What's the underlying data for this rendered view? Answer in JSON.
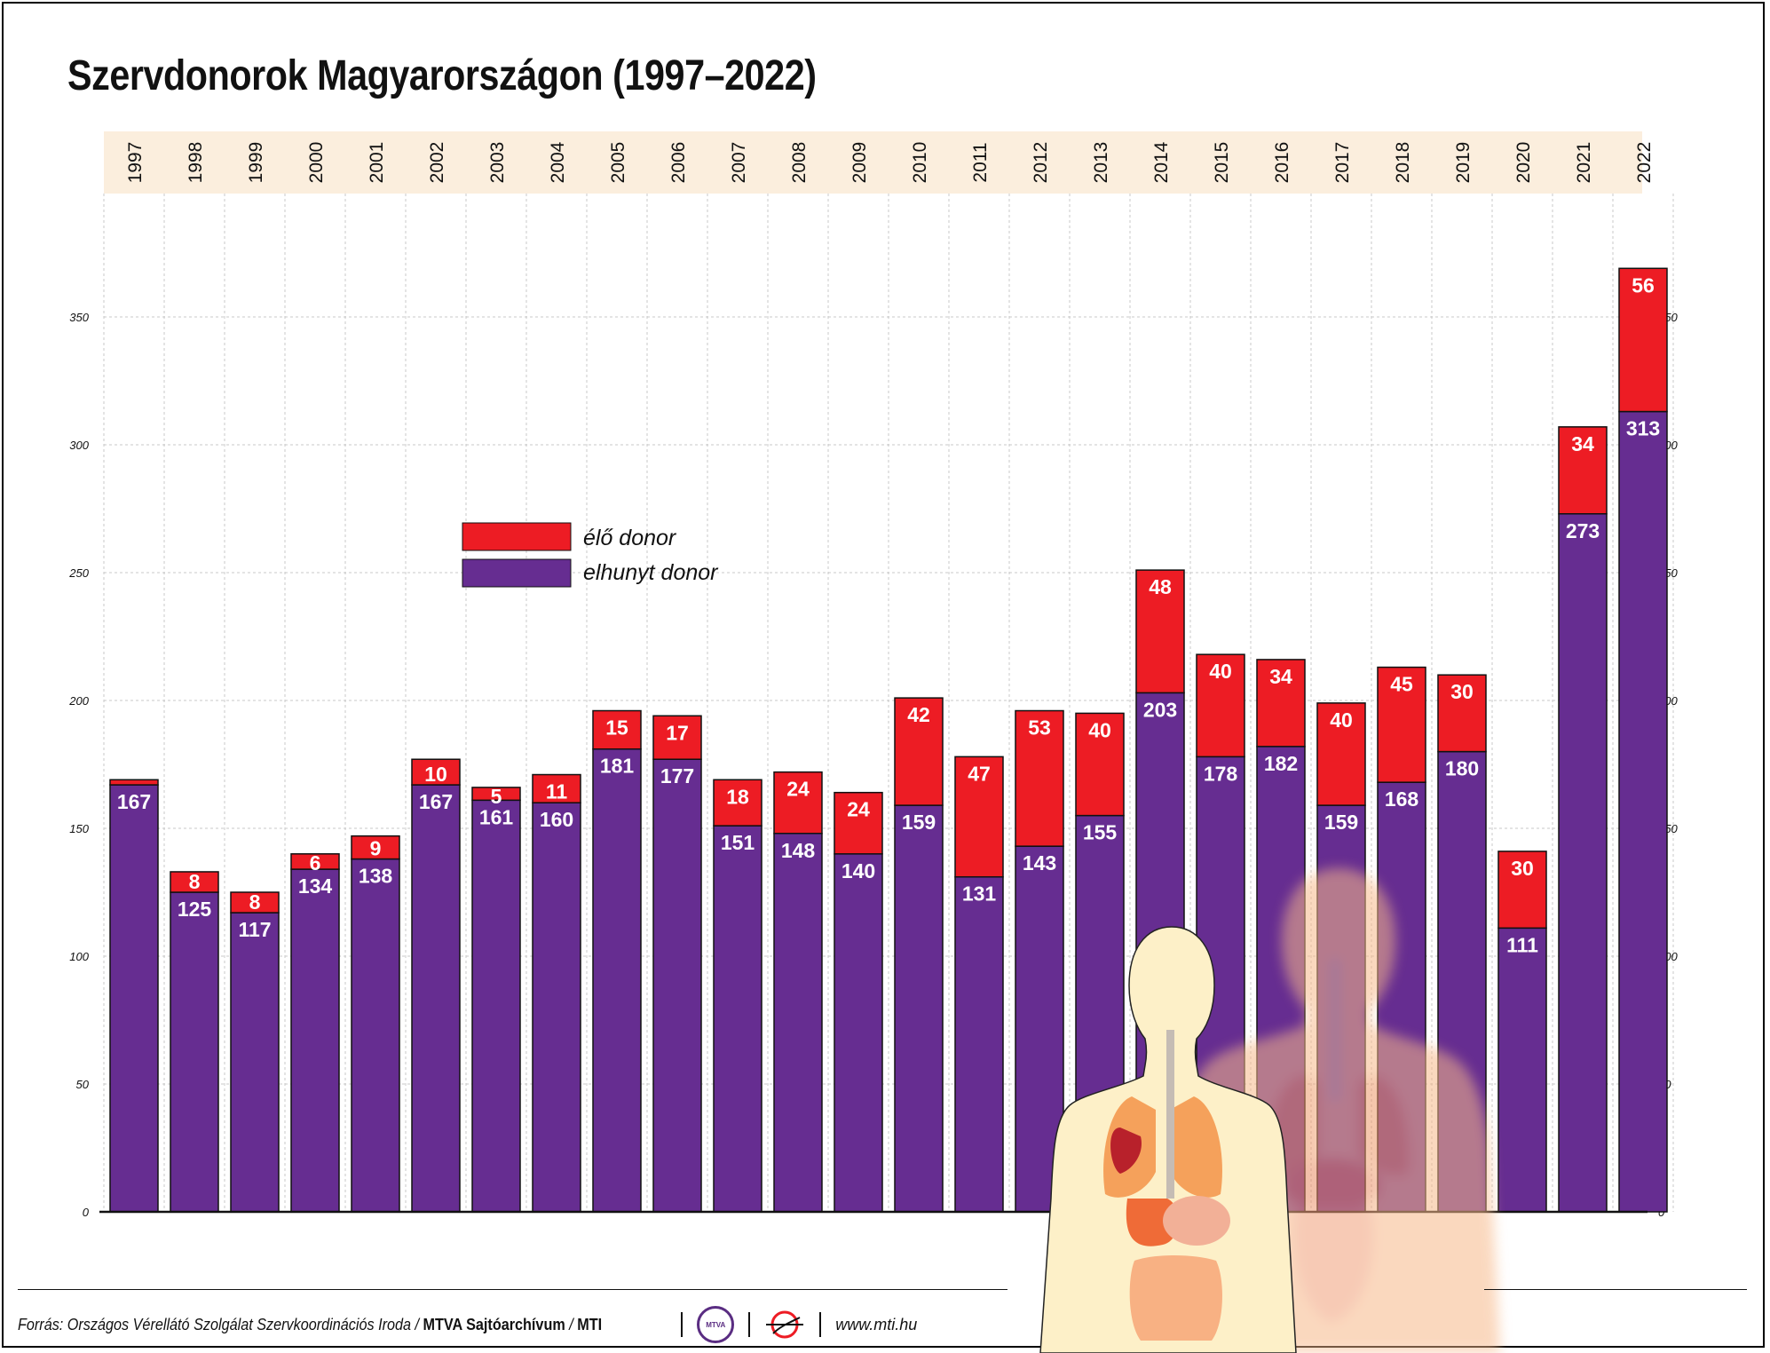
{
  "title": "Szervdonorok Magyarországon (1997–2022)",
  "colors": {
    "living": "#ed1c24",
    "deceased": "#662d91",
    "year_band": "#fbeedd"
  },
  "legend": [
    {
      "label": "élő donor",
      "color": "#ed1c24"
    },
    {
      "label": "elhunyt donor",
      "color": "#662d91"
    }
  ],
  "chart_data": {
    "type": "bar",
    "stacked": true,
    "title": "Szervdonorok Magyarországon (1997–2022)",
    "categories": [
      "1997",
      "1998",
      "1999",
      "2000",
      "2001",
      "2002",
      "2003",
      "2004",
      "2005",
      "2006",
      "2007",
      "2008",
      "2009",
      "2010",
      "2011",
      "2012",
      "2013",
      "2014",
      "2015",
      "2016",
      "2017",
      "2018",
      "2019",
      "2020",
      "2021",
      "2022"
    ],
    "series": [
      {
        "name": "elhunyt donor",
        "values": [
          167,
          125,
          117,
          134,
          138,
          167,
          161,
          160,
          181,
          177,
          151,
          148,
          140,
          159,
          131,
          143,
          155,
          203,
          178,
          182,
          159,
          168,
          180,
          111,
          273,
          313
        ]
      },
      {
        "name": "élő donor",
        "values": [
          2,
          8,
          8,
          6,
          9,
          10,
          5,
          11,
          15,
          17,
          18,
          24,
          24,
          42,
          47,
          53,
          40,
          48,
          40,
          34,
          40,
          45,
          30,
          30,
          34,
          56
        ]
      }
    ],
    "ylim": [
      0,
      400
    ],
    "yticks": [
      0,
      50,
      100,
      150,
      200,
      250,
      300,
      350
    ],
    "legend_position": "upper-left",
    "grid": true
  },
  "footer": {
    "source": "Forrás: Országos Vérellátó Szolgálat Szervkoordinációs Iroda / ",
    "archive": "MTVA Sajtóarchívum",
    "slash": " / ",
    "agency": "MTI",
    "mtva_logo_text": "MTVA",
    "url": "www.mti.hu"
  }
}
